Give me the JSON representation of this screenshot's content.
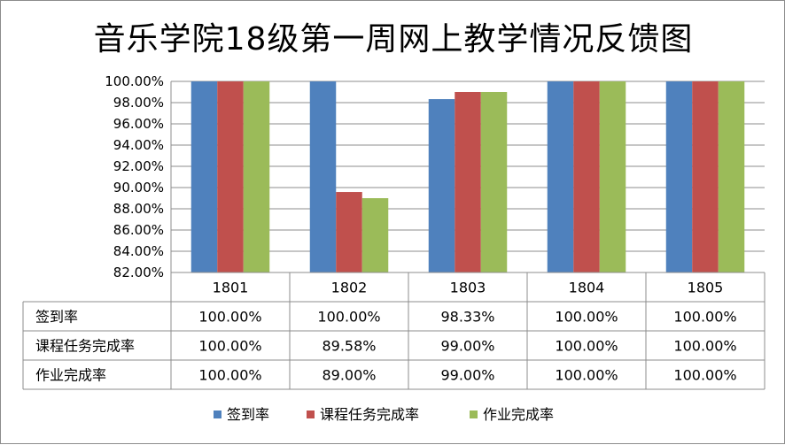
{
  "chart_data": {
    "type": "bar",
    "title": "音乐学院18级第一周网上教学情况反馈图",
    "categories": [
      "1801",
      "1802",
      "1803",
      "1804",
      "1805"
    ],
    "series": [
      {
        "name": "签到率",
        "color": "#4f81bd",
        "values": [
          100.0,
          100.0,
          98.33,
          100.0,
          100.0
        ],
        "labels": [
          "100.00%",
          "100.00%",
          "98.33%",
          "100.00%",
          "100.00%"
        ]
      },
      {
        "name": "课程任务完成率",
        "color": "#c0504d",
        "values": [
          100.0,
          89.58,
          99.0,
          100.0,
          100.0
        ],
        "labels": [
          "100.00%",
          "89.58%",
          "99.00%",
          "100.00%",
          "100.00%"
        ]
      },
      {
        "name": "作业完成率",
        "color": "#9bbb59",
        "values": [
          100.0,
          89.0,
          99.0,
          100.0,
          100.0
        ],
        "labels": [
          "100.00%",
          "89.00%",
          "99.00%",
          "100.00%",
          "100.00%"
        ]
      }
    ],
    "ylim": [
      82,
      100
    ],
    "yticks": [
      82,
      84,
      86,
      88,
      90,
      92,
      94,
      96,
      98,
      100
    ],
    "ytick_labels": [
      "82.00%",
      "84.00%",
      "86.00%",
      "88.00%",
      "90.00%",
      "92.00%",
      "94.00%",
      "96.00%",
      "98.00%",
      "100.00%"
    ],
    "grid": true,
    "legend_position": "bottom",
    "data_table": true
  }
}
